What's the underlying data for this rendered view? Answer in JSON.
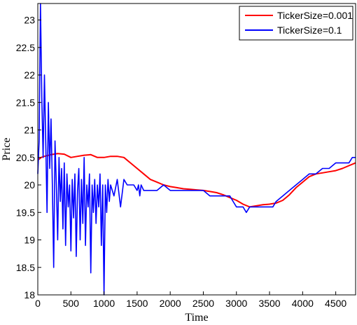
{
  "chart_data": {
    "type": "line",
    "xlabel": "Time",
    "ylabel": "Price",
    "xlim": [
      0,
      4800
    ],
    "ylim": [
      18,
      23.3
    ],
    "xticks": [
      0,
      500,
      1000,
      1500,
      2000,
      2500,
      3000,
      3500,
      4000,
      4500
    ],
    "xtick_labels": [
      "0",
      "500",
      "1000",
      "1500",
      "2000",
      "2500",
      "3000",
      "3500",
      "4000",
      "4500"
    ],
    "yticks": [
      18,
      18.5,
      19,
      19.5,
      20,
      20.5,
      21,
      21.5,
      22,
      22.5,
      23
    ],
    "ytick_labels": [
      "18",
      "18.5",
      "19",
      "19.5",
      "20",
      "20.5",
      "21",
      "21.5",
      "22",
      "22.5",
      "23"
    ],
    "grid": false,
    "legend_position": "top-right",
    "series": [
      {
        "name": "TickerSize=0.001",
        "color": "#ff0000",
        "x": [
          0,
          50,
          100,
          200,
          300,
          400,
          500,
          600,
          700,
          800,
          900,
          1000,
          1100,
          1200,
          1300,
          1400,
          1500,
          1600,
          1700,
          1800,
          1900,
          2000,
          2100,
          2200,
          2300,
          2400,
          2500,
          2600,
          2700,
          2800,
          2900,
          3000,
          3100,
          3200,
          3300,
          3400,
          3500,
          3600,
          3700,
          3800,
          3900,
          4000,
          4100,
          4200,
          4300,
          4400,
          4500,
          4600,
          4700,
          4800
        ],
        "y": [
          20.45,
          20.5,
          20.52,
          20.55,
          20.57,
          20.56,
          20.5,
          20.52,
          20.54,
          20.55,
          20.5,
          20.5,
          20.52,
          20.52,
          20.5,
          20.4,
          20.3,
          20.2,
          20.1,
          20.05,
          20.0,
          19.97,
          19.95,
          19.93,
          19.92,
          19.91,
          19.9,
          19.88,
          19.86,
          19.82,
          19.77,
          19.72,
          19.65,
          19.6,
          19.62,
          19.64,
          19.65,
          19.67,
          19.72,
          19.82,
          19.95,
          20.05,
          20.15,
          20.2,
          20.22,
          20.24,
          20.26,
          20.3,
          20.35,
          20.4
        ]
      },
      {
        "name": "TickerSize=0.1",
        "color": "#0000ff",
        "x": [
          0,
          20,
          40,
          60,
          80,
          100,
          120,
          140,
          160,
          180,
          200,
          220,
          240,
          260,
          280,
          300,
          320,
          340,
          360,
          380,
          400,
          420,
          440,
          460,
          480,
          500,
          520,
          540,
          560,
          580,
          600,
          620,
          640,
          660,
          680,
          700,
          720,
          740,
          760,
          780,
          800,
          820,
          840,
          860,
          880,
          900,
          920,
          940,
          960,
          980,
          1000,
          1020,
          1040,
          1060,
          1080,
          1100,
          1150,
          1200,
          1250,
          1300,
          1350,
          1400,
          1450,
          1500,
          1520,
          1540,
          1560,
          1600,
          1700,
          1800,
          1900,
          2000,
          2100,
          2200,
          2300,
          2400,
          2500,
          2600,
          2700,
          2800,
          2900,
          2950,
          3000,
          3050,
          3100,
          3150,
          3200,
          3250,
          3300,
          3350,
          3400,
          3450,
          3500,
          3550,
          3600,
          3700,
          3800,
          3900,
          4000,
          4100,
          4200,
          4300,
          4400,
          4500,
          4600,
          4700,
          4750,
          4800
        ],
        "y": [
          20.2,
          20.8,
          23.3,
          21.6,
          20.5,
          22.0,
          20.8,
          19.5,
          21.5,
          20.3,
          21.2,
          20.0,
          18.5,
          20.8,
          20.0,
          19.0,
          20.5,
          19.7,
          20.3,
          19.2,
          20.4,
          18.9,
          20.2,
          19.6,
          20.0,
          18.8,
          20.1,
          19.4,
          20.2,
          18.7,
          19.9,
          20.3,
          19.0,
          20.1,
          19.3,
          20.5,
          18.9,
          20.0,
          19.6,
          20.2,
          18.4,
          20.0,
          19.5,
          20.1,
          19.3,
          20.0,
          19.6,
          20.2,
          18.9,
          20.0,
          18.0,
          20.0,
          19.5,
          20.1,
          19.7,
          20.0,
          19.8,
          20.1,
          19.6,
          20.1,
          20.0,
          20.0,
          20.0,
          19.9,
          20.0,
          19.8,
          20.0,
          19.9,
          19.9,
          19.9,
          20.0,
          19.9,
          19.9,
          19.9,
          19.9,
          19.9,
          19.9,
          19.8,
          19.8,
          19.8,
          19.8,
          19.7,
          19.6,
          19.6,
          19.6,
          19.5,
          19.6,
          19.6,
          19.6,
          19.6,
          19.6,
          19.6,
          19.6,
          19.6,
          19.7,
          19.8,
          19.9,
          20.0,
          20.1,
          20.2,
          20.2,
          20.3,
          20.3,
          20.4,
          20.4,
          20.4,
          20.5,
          20.5
        ]
      }
    ]
  }
}
